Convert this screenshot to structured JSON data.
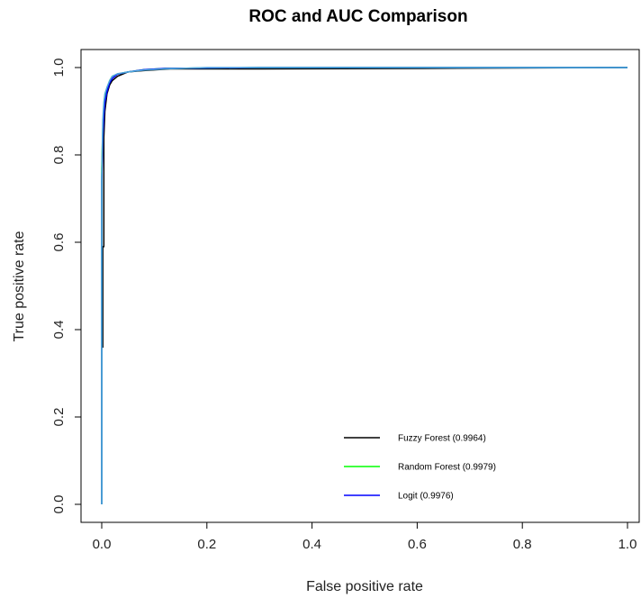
{
  "chart_data": {
    "type": "line",
    "title": "ROC and AUC Comparison",
    "xlabel": "False positive rate",
    "ylabel": "True positive rate",
    "xlim": [
      0,
      1
    ],
    "ylim": [
      0,
      1
    ],
    "xticks": [
      "0.0",
      "0.2",
      "0.4",
      "0.6",
      "0.8",
      "1.0"
    ],
    "yticks": [
      "0.0",
      "0.2",
      "0.4",
      "0.6",
      "0.8",
      "1.0"
    ],
    "grid": false,
    "legend_position": "bottom-right",
    "series": [
      {
        "name": "Fuzzy Forest (0.9964)",
        "color": "#000000",
        "x": [
          0.0,
          0.002,
          0.002,
          0.004,
          0.004,
          0.006,
          0.008,
          0.01,
          0.015,
          0.02,
          0.03,
          0.05,
          0.08,
          0.13,
          0.3,
          0.61,
          1.0
        ],
        "y": [
          0.36,
          0.36,
          0.59,
          0.59,
          0.84,
          0.9,
          0.92,
          0.94,
          0.96,
          0.97,
          0.98,
          0.99,
          0.993,
          0.997,
          0.997,
          0.998,
          1.0
        ]
      },
      {
        "name": "Random Forest (0.9979)",
        "color": "#00ff00",
        "x": [
          0.0,
          0.0,
          0.002,
          0.004,
          0.006,
          0.01,
          0.015,
          0.02,
          0.03,
          0.05,
          0.08,
          0.12,
          0.3,
          1.0
        ],
        "y": [
          0.0,
          0.77,
          0.86,
          0.9,
          0.93,
          0.95,
          0.97,
          0.98,
          0.985,
          0.99,
          0.995,
          0.998,
          1.0,
          1.0
        ]
      },
      {
        "name": "Logit (0.9976)",
        "color": "#0000ff",
        "x": [
          0.0,
          0.0,
          0.002,
          0.004,
          0.006,
          0.01,
          0.015,
          0.02,
          0.03,
          0.05,
          0.08,
          0.12,
          0.3,
          1.0
        ],
        "y": [
          0.0,
          0.74,
          0.84,
          0.89,
          0.92,
          0.945,
          0.965,
          0.975,
          0.985,
          0.99,
          0.995,
          0.998,
          1.0,
          1.0
        ]
      },
      {
        "color": "#4ea6dc",
        "x": [
          0.0,
          0.0,
          0.002,
          0.004,
          0.006,
          0.01,
          0.015,
          0.02,
          0.03,
          0.05,
          0.08,
          0.12,
          0.2,
          1.0
        ],
        "y": [
          0.0,
          0.75,
          0.88,
          0.92,
          0.94,
          0.955,
          0.97,
          0.98,
          0.986,
          0.99,
          0.994,
          0.997,
          1.0,
          1.0
        ]
      }
    ]
  }
}
